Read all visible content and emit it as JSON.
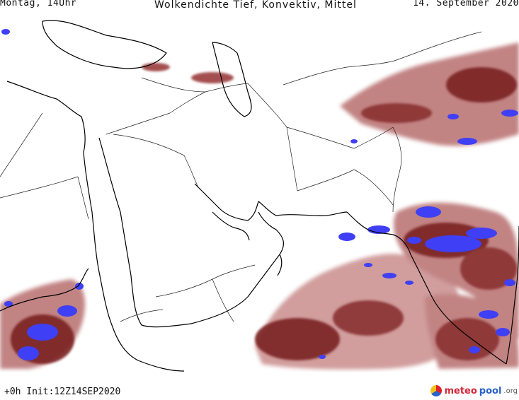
{
  "header": {
    "left": "Montag, 14Uhr",
    "title": "Wolkendichte   Tief, Konvektiv, Mittel",
    "right": "14. September 2020"
  },
  "footer": {
    "init": "+0h  Init:12Z14SEP2020",
    "logo_main": "meteo",
    "logo_accent": "pool",
    "logo_suffix": ".org"
  },
  "legend_colors": {
    "low_density": "#c98c8c",
    "mid_density": "#9b3e3e",
    "high_density": "#5a1010",
    "convective": "#3f3ff5"
  }
}
